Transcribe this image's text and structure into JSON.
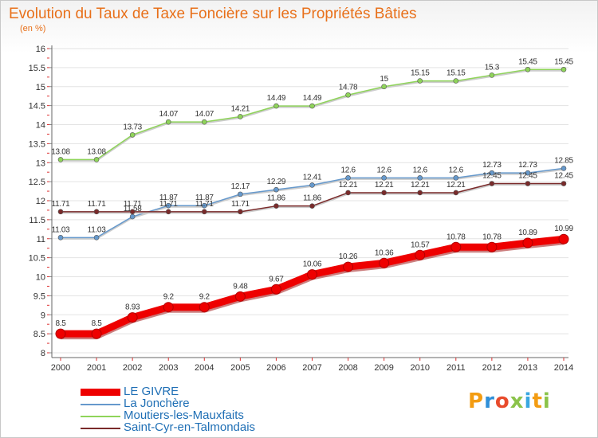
{
  "chart_data": {
    "type": "line",
    "title": "Evolution du Taux de Taxe Foncière sur les Propriétés Bâties",
    "subtitle": "(en %)",
    "x": [
      "2000",
      "2001",
      "2002",
      "2003",
      "2004",
      "2005",
      "2006",
      "2007",
      "2008",
      "2009",
      "2010",
      "2011",
      "2012",
      "2013",
      "2014"
    ],
    "ylim": [
      8,
      16
    ],
    "yticks": [
      "8",
      "8.5",
      "9",
      "9.5",
      "10",
      "10.5",
      "11",
      "11.5",
      "12",
      "12.5",
      "13",
      "13.5",
      "14",
      "14.5",
      "15",
      "15.5",
      "16"
    ],
    "grid": "horizontal",
    "legend": "bottom-left",
    "series": [
      {
        "name": "LE GIVRE",
        "color": "#ee0000",
        "values": [
          8.5,
          8.5,
          8.93,
          9.2,
          9.2,
          9.48,
          9.67,
          10.06,
          10.26,
          10.36,
          10.57,
          10.78,
          10.78,
          10.89,
          10.99
        ],
        "labels": [
          "8.5",
          "8.5",
          "8.93",
          "9.2",
          "9.2",
          "9.48",
          "9.67",
          "10.06",
          "10.26",
          "10.36",
          "10.57",
          "10.78",
          "10.78",
          "10.89",
          "10.99"
        ]
      },
      {
        "name": "La Jonchère",
        "color": "#6699cc",
        "values": [
          11.03,
          11.03,
          11.58,
          11.87,
          11.87,
          12.17,
          12.29,
          12.41,
          12.6,
          12.6,
          12.6,
          12.6,
          12.73,
          12.73,
          12.85
        ],
        "labels": [
          "11.03",
          "11.03",
          "11.58",
          "11.87",
          "11.87",
          "12.17",
          "12.29",
          "12.41",
          "12.6",
          "12.6",
          "12.6",
          "12.6",
          "12.73",
          "12.73",
          "12.85"
        ]
      },
      {
        "name": "Moutiers-les-Mauxfaits",
        "color": "#8fd45a",
        "values": [
          13.08,
          13.08,
          13.73,
          14.07,
          14.07,
          14.21,
          14.49,
          14.49,
          14.78,
          15,
          15.15,
          15.15,
          15.3,
          15.45,
          15.45
        ],
        "labels": [
          "13.08",
          "13.08",
          "13.73",
          "14.07",
          "14.07",
          "14.21",
          "14.49",
          "14.49",
          "14.78",
          "15",
          "15.15",
          "15.15",
          "15.3",
          "15.45",
          "15.45"
        ]
      },
      {
        "name": "Saint-Cyr-en-Talmondais",
        "color": "#7a2a2a",
        "values": [
          11.71,
          11.71,
          11.71,
          11.71,
          11.71,
          11.71,
          11.86,
          11.86,
          12.21,
          12.21,
          12.21,
          12.21,
          12.45,
          12.45,
          12.45
        ],
        "labels": [
          "11.71",
          "11.71",
          "11.71",
          "11.71",
          "11.71",
          "11.71",
          "11.86",
          "11.86",
          "12.21",
          "12.21",
          "12.21",
          "12.21",
          "12.45",
          "12.45",
          "12.45"
        ]
      }
    ]
  },
  "logo": {
    "letters": [
      "P",
      "r",
      "o",
      "x",
      "i",
      "t",
      "i"
    ]
  }
}
